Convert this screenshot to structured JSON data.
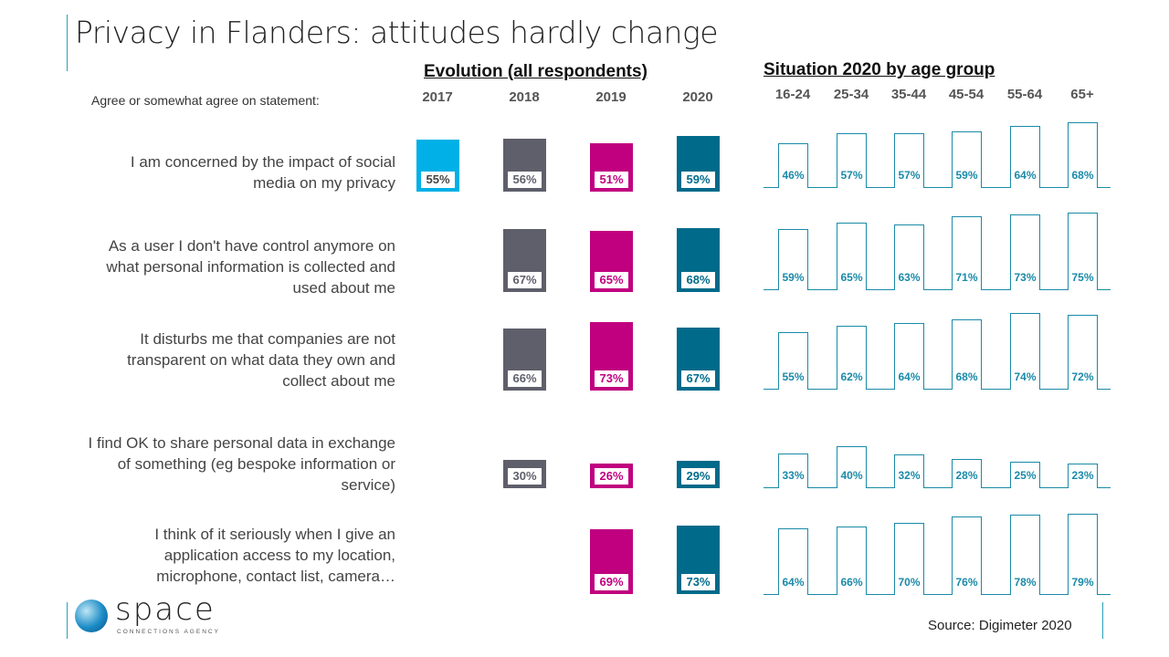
{
  "title": "Privacy in Flanders: attitudes hardly change",
  "subtitle": "Agree or somewhat agree on statement:",
  "source": "Source: Digimeter 2020",
  "logo": {
    "name": "space",
    "tagline": "CONNECTIONS AGENCY"
  },
  "chart_data": [
    {
      "type": "bar",
      "title": "Evolution (all respondents)",
      "categories": [
        "2017",
        "2018",
        "2019",
        "2020"
      ],
      "colors": [
        "#00b0e6",
        "#5f5f6b",
        "#c0007f",
        "#006a8a"
      ],
      "rows": [
        {
          "statement": "I am concerned by the impact of social media on my privacy",
          "values": [
            55,
            56,
            51,
            59
          ]
        },
        {
          "statement": "As a user I don't have control anymore on what personal information is collected and used about me",
          "values": [
            null,
            67,
            65,
            68
          ]
        },
        {
          "statement": "It disturbs me that companies are not transparent on what data they own and collect about me",
          "values": [
            null,
            66,
            73,
            67
          ]
        },
        {
          "statement": "I  find OK to share personal data in exchange of something (eg bespoke information or service)",
          "values": [
            null,
            30,
            26,
            29
          ]
        },
        {
          "statement": "I think of it seriously when I give an application access to my location, microphone, contact list, camera…",
          "values": [
            null,
            null,
            69,
            73
          ]
        }
      ]
    },
    {
      "type": "bar",
      "title": "Situation 2020 by age group",
      "categories": [
        "16-24",
        "25-34",
        "35-44",
        "45-54",
        "55-64",
        "65+"
      ],
      "color": "#1a8aa8",
      "rows": [
        {
          "values": [
            46,
            57,
            57,
            59,
            64,
            68
          ]
        },
        {
          "values": [
            59,
            65,
            63,
            71,
            73,
            75
          ]
        },
        {
          "values": [
            55,
            62,
            64,
            68,
            74,
            72
          ]
        },
        {
          "values": [
            33,
            40,
            32,
            28,
            25,
            23
          ]
        },
        {
          "values": [
            64,
            66,
            70,
            76,
            78,
            79
          ]
        }
      ]
    }
  ]
}
